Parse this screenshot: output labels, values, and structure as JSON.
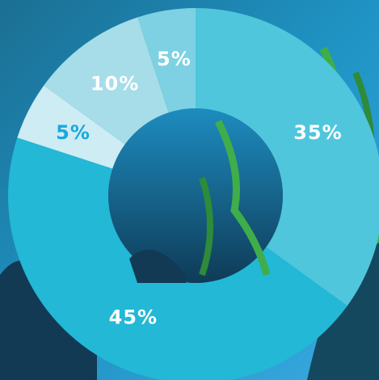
{
  "chart_data": {
    "type": "donut",
    "values": [
      35,
      45,
      5,
      10,
      5
    ],
    "value_labels": [
      "35%",
      "45%",
      "5%",
      "10%",
      "5%"
    ],
    "colors": [
      "#4fc6dc",
      "#22b8d6",
      "#cdecf3",
      "#a6dde8",
      "#7dd1e2"
    ]
  }
}
